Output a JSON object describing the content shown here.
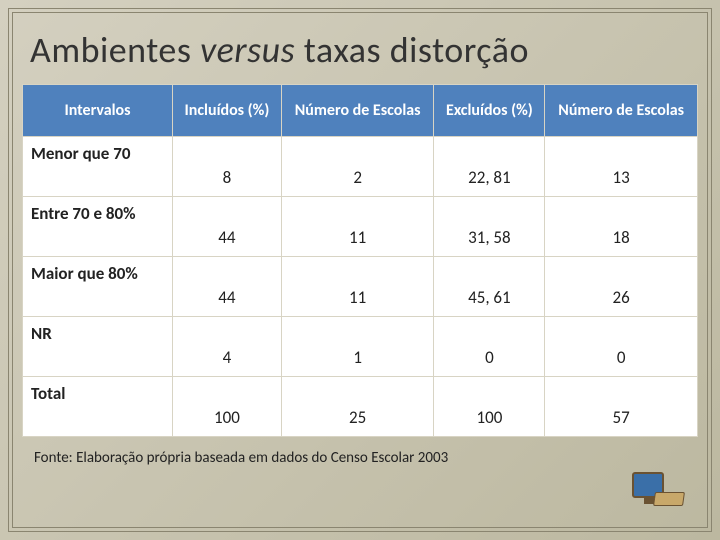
{
  "title_parts": {
    "p1": "Ambientes ",
    "p2": "versus",
    "p3": " taxas distorção"
  },
  "table": {
    "header_bg": "#4f81bd",
    "header_color": "#ffffff",
    "border_color": "#d8d4c4",
    "columns": [
      "Intervalos",
      "Incluídos (%)",
      "Número de Escolas",
      "Excluídos (%)",
      "Número de Escolas"
    ],
    "rows": [
      {
        "label": "Menor que 70",
        "c1": "8",
        "c2": "2",
        "c3": "22, 81",
        "c4": "13"
      },
      {
        "label": "Entre 70 e 80%",
        "c1": "44",
        "c2": "11",
        "c3": "31, 58",
        "c4": "18"
      },
      {
        "label": "Maior que 80%",
        "c1": "44",
        "c2": "11",
        "c3": "45, 61",
        "c4": "26"
      },
      {
        "label": "NR",
        "c1": "4",
        "c2": "1",
        "c3": "0",
        "c4": "0"
      },
      {
        "label": "Total",
        "c1": "100",
        "c2": "25",
        "c3": "100",
        "c4": "57"
      }
    ]
  },
  "source": "Fonte: Elaboração própria baseada em dados do Censo Escolar 2003",
  "colors": {
    "bg_gradient_from": "#d4d0c0",
    "bg_gradient_to": "#bcb8a0",
    "frame": "#8a8570"
  }
}
